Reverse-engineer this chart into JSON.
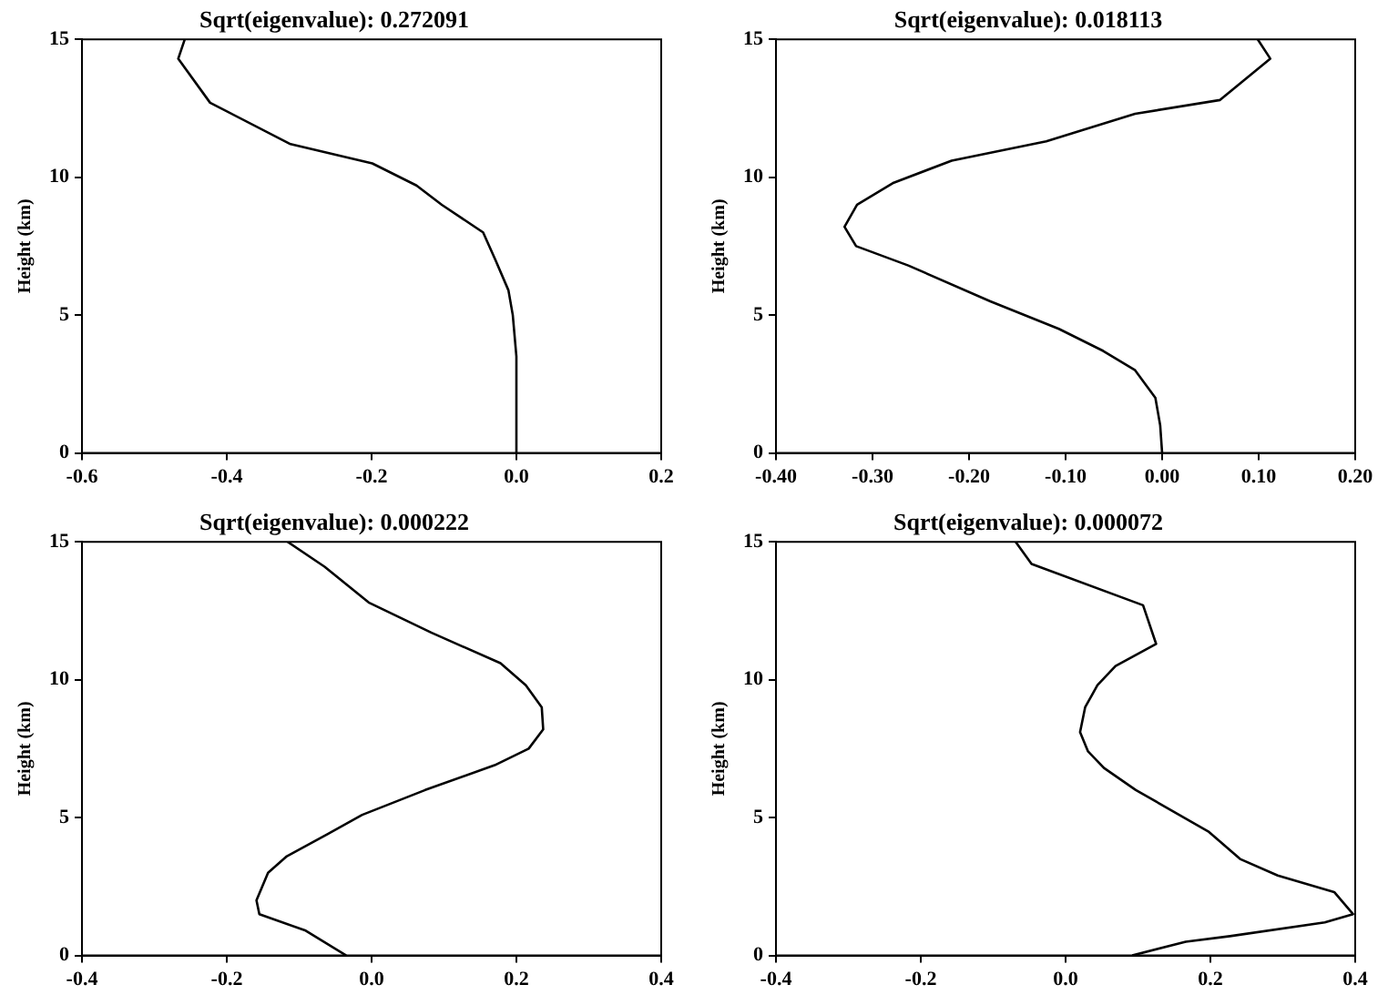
{
  "chart_data": [
    {
      "type": "line",
      "title": "Sqrt(eigenvalue): 0.272091",
      "ylabel": "Height (km)",
      "xlim": [
        -0.6,
        0.2
      ],
      "xticks": [
        {
          "value": -0.6,
          "label": "-0.6"
        },
        {
          "value": -0.4,
          "label": "-0.4"
        },
        {
          "value": -0.2,
          "label": "-0.2"
        },
        {
          "value": 0,
          "label": "0.0"
        },
        {
          "value": 0.2,
          "label": "0.2"
        }
      ],
      "ylim": [
        0,
        15
      ],
      "yticks": [
        0,
        5,
        10,
        15
      ],
      "series": [
        {
          "color": "#000000",
          "x": [
            0.0,
            0.0,
            -0.005,
            -0.011,
            -0.029,
            -0.046,
            -0.103,
            -0.138,
            -0.199,
            -0.312,
            -0.423,
            -0.467,
            -0.458
          ],
          "values": [
            0,
            3.5,
            5.0,
            5.9,
            7.0,
            8.0,
            9.0,
            9.7,
            10.5,
            11.2,
            12.7,
            14.3,
            15
          ]
        }
      ]
    },
    {
      "type": "line",
      "title": "Sqrt(eigenvalue): 0.018113",
      "ylabel": "Height (km)",
      "xlim": [
        -0.4,
        0.2
      ],
      "xticks": [
        {
          "value": -0.4,
          "label": "-0.40"
        },
        {
          "value": -0.3,
          "label": "-0.30"
        },
        {
          "value": -0.2,
          "label": "-0.20"
        },
        {
          "value": -0.1,
          "label": "-0.10"
        },
        {
          "value": 0,
          "label": "0.00"
        },
        {
          "value": 0.1,
          "label": "0.10"
        },
        {
          "value": 0.2,
          "label": "0.20"
        }
      ],
      "ylim": [
        0,
        15
      ],
      "yticks": [
        0,
        5,
        10,
        15
      ],
      "series": [
        {
          "color": "#000000",
          "x": [
            0.0,
            -0.002,
            -0.007,
            -0.028,
            -0.061,
            -0.107,
            -0.178,
            -0.263,
            -0.317,
            -0.329,
            -0.316,
            -0.278,
            -0.218,
            -0.12,
            -0.028,
            0.06,
            0.112,
            0.099
          ],
          "values": [
            0,
            1.0,
            2.0,
            3.0,
            3.7,
            4.5,
            5.5,
            6.8,
            7.5,
            8.2,
            9.0,
            9.8,
            10.6,
            11.3,
            12.3,
            12.8,
            14.3,
            15
          ]
        }
      ]
    },
    {
      "type": "line",
      "title": "Sqrt(eigenvalue): 0.000222",
      "ylabel": "Height (km)",
      "xlim": [
        -0.4,
        0.4
      ],
      "xticks": [
        {
          "value": -0.4,
          "label": "-0.4"
        },
        {
          "value": -0.2,
          "label": "-0.2"
        },
        {
          "value": 0,
          "label": "0.0"
        },
        {
          "value": 0.2,
          "label": "0.2"
        },
        {
          "value": 0.4,
          "label": "0.4"
        }
      ],
      "ylim": [
        0,
        15
      ],
      "yticks": [
        0,
        5,
        10,
        15
      ],
      "series": [
        {
          "color": "#000000",
          "x": [
            -0.035,
            -0.091,
            -0.155,
            -0.159,
            -0.143,
            -0.117,
            -0.061,
            -0.013,
            0.074,
            0.17,
            0.217,
            0.237,
            0.235,
            0.213,
            0.178,
            0.083,
            -0.004,
            -0.065,
            -0.116
          ],
          "values": [
            0,
            0.9,
            1.5,
            2.0,
            3.0,
            3.6,
            4.4,
            5.1,
            6.0,
            6.9,
            7.5,
            8.2,
            9.0,
            9.8,
            10.6,
            11.7,
            12.8,
            14.1,
            15
          ]
        }
      ]
    },
    {
      "type": "line",
      "title": "Sqrt(eigenvalue): 0.000072",
      "ylabel": "Height (km)",
      "xlim": [
        -0.4,
        0.4
      ],
      "xticks": [
        {
          "value": -0.4,
          "label": "-0.4"
        },
        {
          "value": -0.2,
          "label": "-0.2"
        },
        {
          "value": 0,
          "label": "0.0"
        },
        {
          "value": 0.2,
          "label": "0.2"
        },
        {
          "value": 0.4,
          "label": "0.4"
        }
      ],
      "ylim": [
        0,
        15
      ],
      "yticks": [
        0,
        5,
        10,
        15
      ],
      "series": [
        {
          "color": "#000000",
          "x": [
            0.092,
            0.166,
            0.227,
            0.358,
            0.397,
            0.371,
            0.293,
            0.241,
            0.197,
            0.097,
            0.053,
            0.031,
            0.02,
            0.027,
            0.044,
            0.069,
            0.125,
            0.107,
            -0.047,
            -0.069
          ],
          "values": [
            0,
            0.5,
            0.7,
            1.2,
            1.5,
            2.3,
            2.9,
            3.5,
            4.5,
            6.0,
            6.8,
            7.4,
            8.1,
            9.0,
            9.8,
            10.5,
            11.3,
            12.7,
            14.2,
            15
          ]
        }
      ]
    }
  ]
}
